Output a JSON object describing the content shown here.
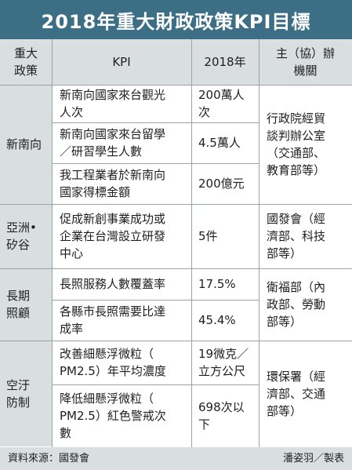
{
  "title": "2018年重大財政政策KPI目標",
  "headers": {
    "policy": "重大\n政策",
    "kpi": "KPI",
    "year": "2018年",
    "agency": "主（協）辦\n機關"
  },
  "groups": [
    {
      "policy": "新南向",
      "agency": "行政院經貿\n談判辦公室\n（交通部、\n教育部等）",
      "rows": [
        {
          "kpi": "新南向國家來台觀光\n人次",
          "target": "200萬人\n次"
        },
        {
          "kpi": "新南向國家來台留學\n／研習學生人數",
          "target": "4.5萬人"
        },
        {
          "kpi": "我工程業者於新南向\n國家得標金額",
          "target": "200億元"
        }
      ]
    },
    {
      "policy": "亞洲•\n矽谷",
      "agency": "國發會（經\n濟部、科技\n部等）",
      "rows": [
        {
          "kpi": "促成新創事業成功或\n企業在台灣設立研發\n中心",
          "target": "5件"
        }
      ]
    },
    {
      "policy": "長期\n照顧",
      "agency": "衛福部（內\n政部、勞動\n部等）",
      "rows": [
        {
          "kpi": "長照服務人數覆蓋率",
          "target": "17.5%"
        },
        {
          "kpi": "各縣市長照需要比達\n成率",
          "target": "45.4%"
        }
      ]
    },
    {
      "policy": "空汙\n防制",
      "agency": "環保署（經\n濟部、交通\n部等）",
      "rows": [
        {
          "kpi": "改善細懸浮微粒（\nPM2.5）年平均濃度",
          "target": "19微克／\n立方公尺"
        },
        {
          "kpi": "降低細懸浮微粒（\nPM2.5）紅色警戒次\n數",
          "target": "698次以\n下"
        }
      ]
    }
  ],
  "footer": {
    "source": "資料來源：國發會",
    "credit": "潘姿羽／製表"
  }
}
